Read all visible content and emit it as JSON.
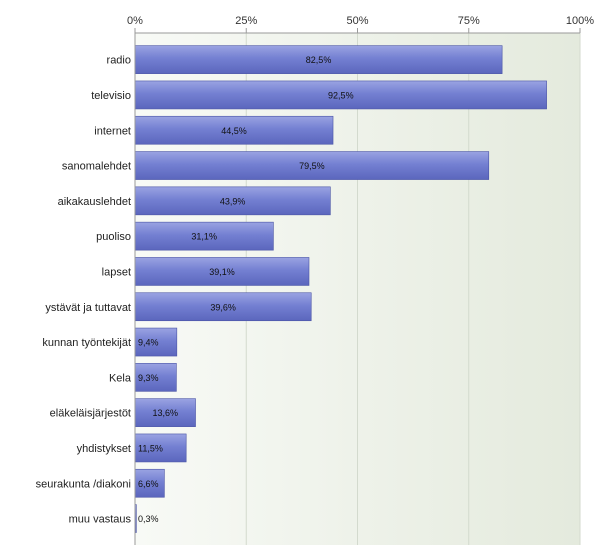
{
  "chart_data": {
    "type": "bar",
    "orientation": "horizontal",
    "categories": [
      "radio",
      "televisio",
      "internet",
      "sanomalehdet",
      "aikakauslehdet",
      "puoliso",
      "lapset",
      "ystävät ja tuttavat",
      "kunnan työntekijät",
      "Kela",
      "eläkeläisjärjestöt",
      "yhdistykset",
      "seurakunta /diakoni",
      "muu vastaus"
    ],
    "values": [
      82.5,
      92.5,
      44.5,
      79.5,
      43.9,
      31.1,
      39.1,
      39.6,
      9.4,
      9.3,
      13.6,
      11.5,
      6.6,
      0.3
    ],
    "value_labels": [
      "82,5%",
      "92,5%",
      "44,5%",
      "79,5%",
      "43,9%",
      "31,1%",
      "39,1%",
      "39,6%",
      "9,4%",
      "9,3%",
      "13,6%",
      "11,5%",
      "6,6%",
      "0,3%"
    ],
    "x_ticks": [
      0,
      25,
      50,
      75,
      100
    ],
    "x_tick_labels": [
      "0%",
      "25%",
      "50%",
      "75%",
      "100%"
    ],
    "xlim": [
      0,
      100
    ],
    "axis_position": "top",
    "grid": true,
    "legend": "none",
    "title": "",
    "xlabel": "",
    "ylabel": "",
    "colors": {
      "bar_top": "#9aa3e2",
      "bar_mid": "#7480d2",
      "bar_bottom": "#5b66bd",
      "bar_stroke": "#4a54a6",
      "plot_left": "#f8faf6",
      "plot_right": "#e4eadd",
      "grid": "#d3dace",
      "axis": "#9a9a9a"
    }
  }
}
